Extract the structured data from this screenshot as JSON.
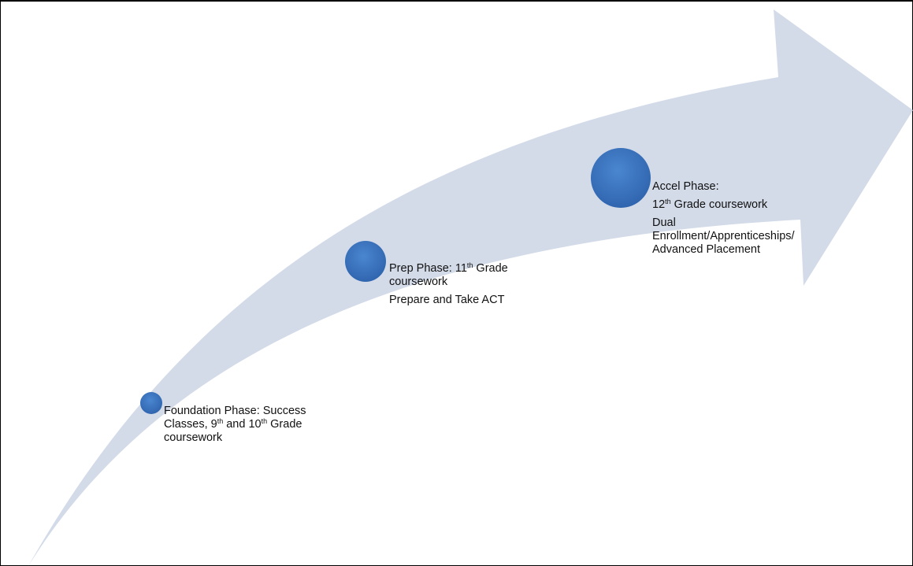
{
  "diagram": {
    "type": "curved-arrow-process",
    "arrow_color": "#d3dbe9",
    "node_color": "#3b73be",
    "phases": [
      {
        "name": "Foundation Phase: Success Classes, 9th and 10th Grade coursework",
        "lines": [
          {
            "pre": "Foundation Phase: Success Classes, 9",
            "sup": "th",
            "post": " and 10",
            "sup2": "th",
            "post2": " Grade coursework"
          }
        ]
      },
      {
        "name": "Prep Phase",
        "lines": [
          {
            "pre": "Prep Phase: 11",
            "sup": "th",
            "post": " Grade coursework"
          },
          {
            "pre": "Prepare and Take ACT"
          }
        ]
      },
      {
        "name": "Accel Phase",
        "lines": [
          {
            "pre": "Accel Phase:"
          },
          {
            "pre": "12",
            "sup": "th",
            "post": " Grade coursework"
          },
          {
            "pre": "Dual Enrollment/Apprenticeships/ Advanced Placement"
          }
        ]
      }
    ]
  }
}
